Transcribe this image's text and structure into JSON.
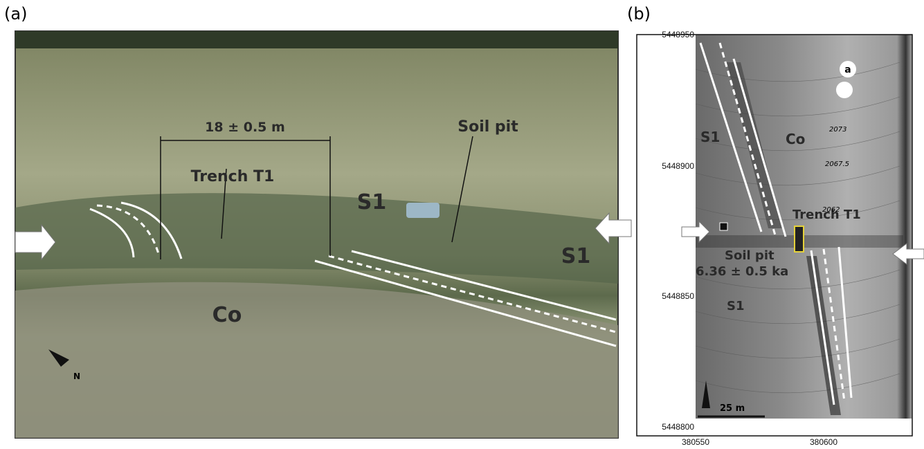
{
  "panel_a": {
    "tag": "(a)",
    "offset": "18 ± 0.5 m",
    "trench": "Trench T1",
    "soil_pit": "Soil pit",
    "unit_s1_left": "S1",
    "unit_s1_right": "S1",
    "unit_co": "Co",
    "north": "N"
  },
  "panel_b": {
    "tag": "(b)",
    "yticks": [
      5448950,
      5448900,
      5448850,
      5448800
    ],
    "xticks": [
      380550,
      380600
    ],
    "unit_s1_top": "S1",
    "unit_co": "Co",
    "trench": "Trench T1",
    "soil_pit": "Soil pit",
    "soil_age": "6.36 ± 0.5 ka",
    "unit_s1_bottom": "S1",
    "contours": [
      "2073",
      "2067.5",
      "2062"
    ],
    "scale": "25 m",
    "view_label": "a"
  }
}
